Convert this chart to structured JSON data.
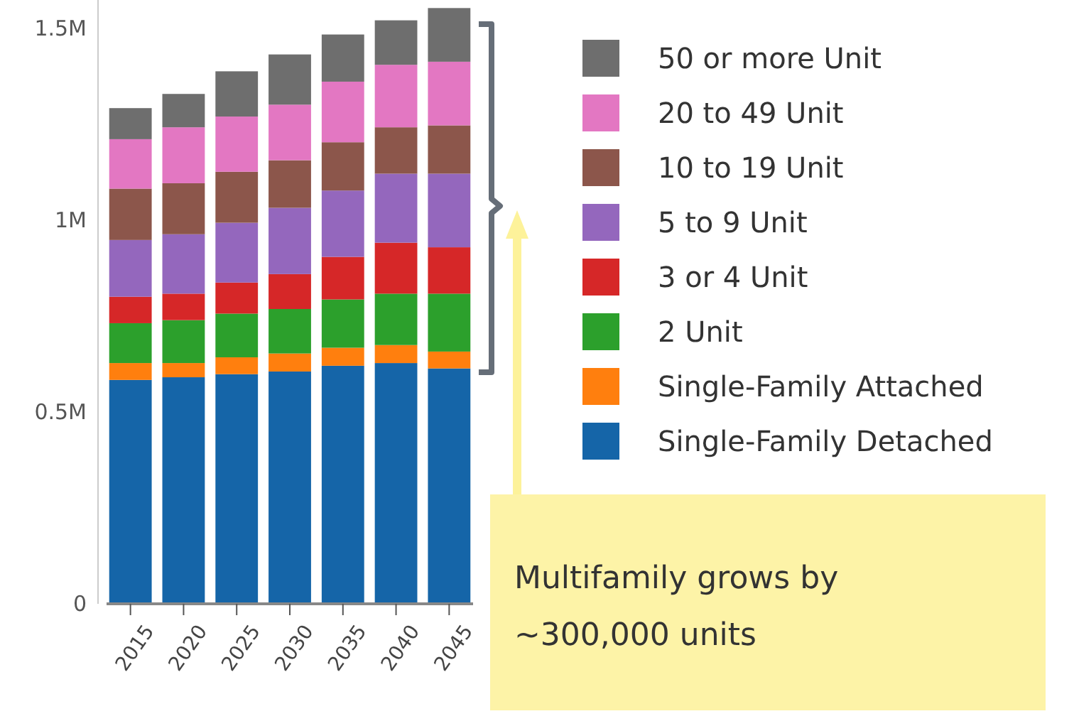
{
  "chart_data": {
    "type": "bar",
    "stacked": true,
    "categories": [
      "2015",
      "2020",
      "2025",
      "2030",
      "2035",
      "2040",
      "2045"
    ],
    "series": [
      {
        "name": "Single-Family Detached",
        "color": "#1565a8",
        "values": [
          584000,
          591000,
          599000,
          606000,
          621000,
          628000,
          614000
        ]
      },
      {
        "name": "Single-Family Attached",
        "color": "#ff7f0e",
        "values": [
          44000,
          37000,
          44000,
          47000,
          47000,
          47000,
          44000
        ]
      },
      {
        "name": "2 Unit",
        "color": "#2ca02c",
        "values": [
          104000,
          112000,
          114000,
          116000,
          126000,
          134000,
          151000
        ]
      },
      {
        "name": "3 or 4 Unit",
        "color": "#d62728",
        "values": [
          69000,
          69000,
          81000,
          91000,
          111000,
          133000,
          121000
        ]
      },
      {
        "name": "5 to 9 Unit",
        "color": "#9467bd",
        "values": [
          148000,
          155000,
          156000,
          173000,
          173000,
          180000,
          192000
        ]
      },
      {
        "name": "10 to 19 Unit",
        "color": "#8c564b",
        "values": [
          134000,
          133000,
          133000,
          124000,
          126000,
          121000,
          126000
        ]
      },
      {
        "name": "20 to 49 Unit",
        "color": "#e377c2",
        "values": [
          129000,
          146000,
          144000,
          145000,
          158000,
          163000,
          166000
        ]
      },
      {
        "name": "50 or more Unit",
        "color": "#6e6e6e",
        "values": [
          81000,
          87000,
          118000,
          131000,
          123000,
          116000,
          140000
        ]
      }
    ],
    "ylim": [
      0,
      1575000
    ],
    "yticks": [
      {
        "value": 0,
        "label": "0"
      },
      {
        "value": 500000,
        "label": "0.5M"
      },
      {
        "value": 1000000,
        "label": "1M"
      },
      {
        "value": 1500000,
        "label": "1.5M"
      }
    ],
    "legend": "right",
    "annotations": [
      "Multifamily grows by ~300,000 units"
    ]
  }
}
